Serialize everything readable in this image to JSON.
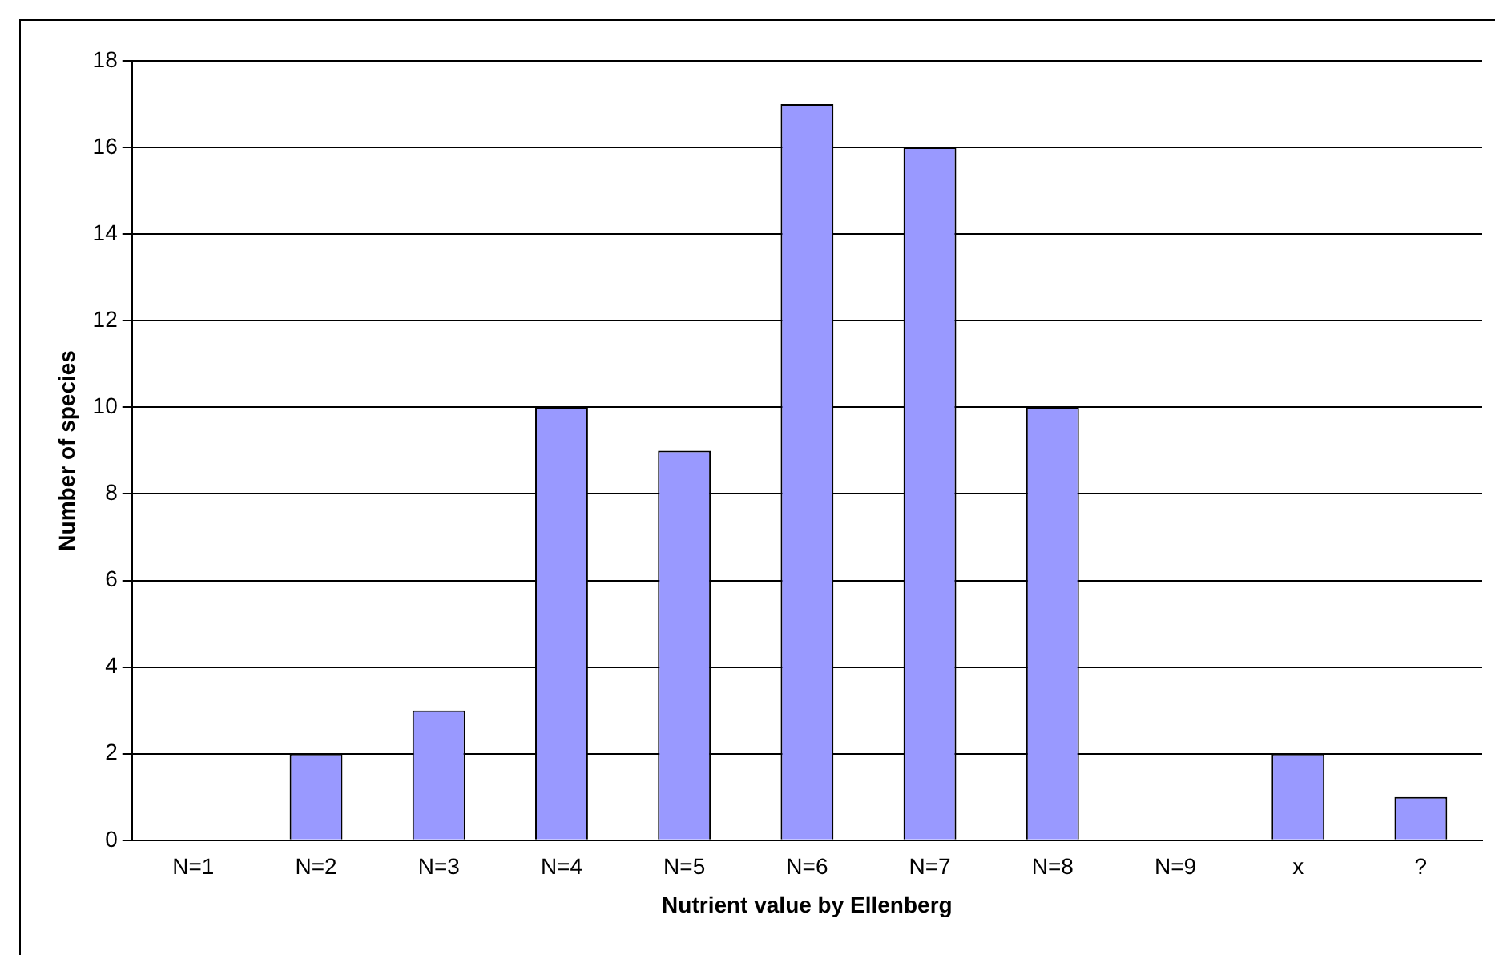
{
  "chart_data": {
    "type": "bar",
    "xlabel": "Nutrient value by Ellenberg",
    "ylabel": "Number of species",
    "categories": [
      "N=1",
      "N=2",
      "N=3",
      "N=4",
      "N=5",
      "N=6",
      "N=7",
      "N=8",
      "N=9",
      "x",
      "?"
    ],
    "values": [
      0,
      2,
      3,
      10,
      9,
      17,
      16,
      10,
      0,
      2,
      1
    ],
    "color": "#9999ff",
    "ylim": [
      0,
      18
    ],
    "yticks": [
      0,
      2,
      4,
      6,
      8,
      10,
      12,
      14,
      16,
      18
    ],
    "grid": "y",
    "legend": false
  }
}
